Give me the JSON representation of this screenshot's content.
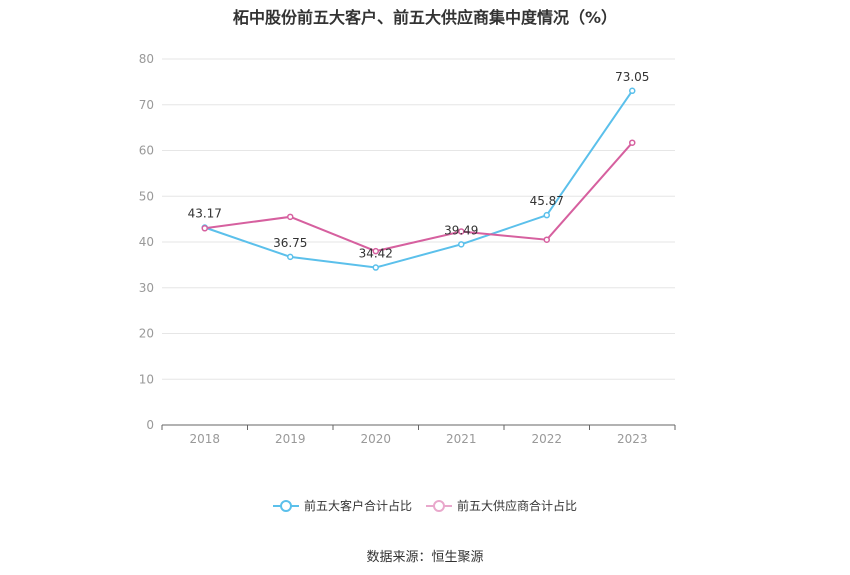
{
  "title": "柘中股份前五大客户、前五大供应商集中度情况（%）",
  "source": "数据来源：恒生聚源",
  "colors": {
    "customer": "#5bc0eb",
    "supplier": "#d6609f",
    "grid": "#e6e6e6",
    "axis": "#666666",
    "tick": "#999999"
  },
  "chart_data": {
    "type": "line",
    "title": "柘中股份前五大客户、前五大供应商集中度情况（%）",
    "categories": [
      "2018",
      "2019",
      "2020",
      "2021",
      "2022",
      "2023"
    ],
    "ylim": [
      0,
      80
    ],
    "yticks": [
      0,
      10,
      20,
      30,
      40,
      50,
      60,
      70,
      80
    ],
    "grid": true,
    "legend_position": "bottom",
    "series": [
      {
        "name": "前五大客户合计占比",
        "values": [
          43.17,
          36.75,
          34.42,
          39.49,
          45.87,
          73.05
        ],
        "labels": [
          "43.17",
          "36.75",
          "34.42",
          "39.49",
          "45.87",
          "73.05"
        ]
      },
      {
        "name": "前五大供应商合计占比",
        "values": [
          43.0,
          45.5,
          38.0,
          42.3,
          40.5,
          61.7
        ]
      }
    ]
  }
}
